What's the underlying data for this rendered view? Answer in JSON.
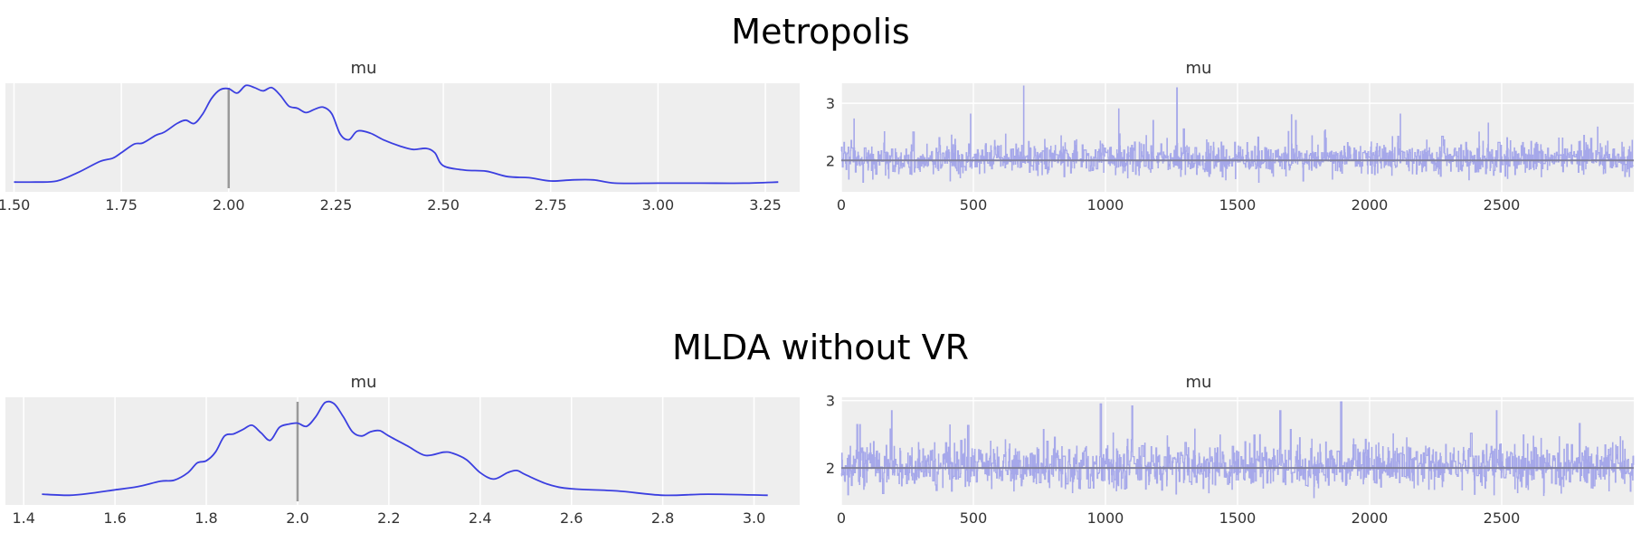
{
  "colors": {
    "background": "#ffffff",
    "panel": "#eeeeee",
    "grid": "#ffffff",
    "kde_line": "#3b3fe0",
    "trace_line": "#a6a8ea",
    "ref_line": "#999999",
    "trace_mean": "#7f7f99"
  },
  "chart_data": [
    {
      "group": "Metropolis",
      "suptitle": "Metropolis",
      "kde": {
        "type": "line",
        "title": "mu",
        "xlim": [
          1.48,
          3.33
        ],
        "ylim": [
          0,
          1
        ],
        "y_ticks_shown": false,
        "grid": true,
        "xticks": [
          1.5,
          1.75,
          2.0,
          2.25,
          2.5,
          2.75,
          3.0,
          3.25
        ],
        "xtick_labels": [
          "1.50",
          "1.75",
          "2.00",
          "2.25",
          "2.50",
          "2.75",
          "3.00",
          "3.25"
        ],
        "ref_line": 2.0,
        "x": [
          1.5,
          1.55,
          1.6,
          1.65,
          1.7,
          1.73,
          1.75,
          1.78,
          1.8,
          1.83,
          1.85,
          1.88,
          1.9,
          1.92,
          1.94,
          1.96,
          1.98,
          2.0,
          2.02,
          2.04,
          2.06,
          2.08,
          2.1,
          2.12,
          2.14,
          2.16,
          2.18,
          2.2,
          2.22,
          2.24,
          2.26,
          2.28,
          2.3,
          2.33,
          2.36,
          2.4,
          2.43,
          2.46,
          2.48,
          2.5,
          2.55,
          2.6,
          2.65,
          2.7,
          2.75,
          2.8,
          2.85,
          2.9,
          3.0,
          3.1,
          3.2,
          3.28
        ],
        "y": [
          0.09,
          0.09,
          0.1,
          0.18,
          0.28,
          0.31,
          0.36,
          0.44,
          0.45,
          0.52,
          0.55,
          0.63,
          0.66,
          0.63,
          0.72,
          0.86,
          0.94,
          0.95,
          0.91,
          0.98,
          0.96,
          0.93,
          0.96,
          0.89,
          0.79,
          0.77,
          0.73,
          0.76,
          0.78,
          0.72,
          0.53,
          0.48,
          0.56,
          0.54,
          0.48,
          0.42,
          0.39,
          0.4,
          0.36,
          0.24,
          0.2,
          0.19,
          0.14,
          0.13,
          0.1,
          0.11,
          0.11,
          0.08,
          0.08,
          0.08,
          0.08,
          0.09
        ]
      },
      "trace": {
        "type": "line",
        "title": "mu",
        "xlim": [
          0,
          3000
        ],
        "ylim": [
          1.45,
          3.35
        ],
        "grid": true,
        "xticks": [
          0,
          500,
          1000,
          1500,
          2000,
          2500
        ],
        "xtick_labels": [
          "0",
          "500",
          "1000",
          "1500",
          "2000",
          "2500"
        ],
        "yticks": [
          2,
          3
        ],
        "ytick_labels": [
          "2",
          "3"
        ],
        "ref_line": 2.0,
        "n_draws": 3000,
        "mean": 2.02,
        "sd": 0.22,
        "seed": 7,
        "spikes": [
          [
            690,
            3.3
          ],
          [
            1270,
            3.27
          ],
          [
            1050,
            2.9
          ],
          [
            1180,
            2.7
          ],
          [
            1720,
            2.7
          ]
        ]
      }
    },
    {
      "group": "MLDA without VR",
      "suptitle": "MLDA without VR",
      "kde": {
        "type": "line",
        "title": "mu",
        "xlim": [
          1.36,
          3.1
        ],
        "ylim": [
          0,
          1
        ],
        "y_ticks_shown": false,
        "grid": true,
        "xticks": [
          1.4,
          1.6,
          1.8,
          2.0,
          2.2,
          2.4,
          2.6,
          2.8,
          3.0
        ],
        "xtick_labels": [
          "1.4",
          "1.6",
          "1.8",
          "2.0",
          "2.2",
          "2.4",
          "2.6",
          "2.8",
          "3.0"
        ],
        "ref_line": 2.0,
        "x": [
          1.44,
          1.5,
          1.55,
          1.6,
          1.65,
          1.7,
          1.73,
          1.76,
          1.78,
          1.8,
          1.82,
          1.84,
          1.86,
          1.88,
          1.9,
          1.92,
          1.94,
          1.96,
          1.98,
          2.0,
          2.02,
          2.04,
          2.06,
          2.08,
          2.1,
          2.12,
          2.14,
          2.16,
          2.18,
          2.2,
          2.24,
          2.28,
          2.32,
          2.34,
          2.37,
          2.4,
          2.43,
          2.46,
          2.48,
          2.5,
          2.55,
          2.6,
          2.7,
          2.8,
          2.9,
          3.03
        ],
        "y": [
          0.1,
          0.09,
          0.11,
          0.14,
          0.17,
          0.22,
          0.23,
          0.3,
          0.39,
          0.41,
          0.49,
          0.64,
          0.66,
          0.7,
          0.74,
          0.67,
          0.6,
          0.72,
          0.75,
          0.76,
          0.73,
          0.82,
          0.95,
          0.94,
          0.82,
          0.68,
          0.64,
          0.68,
          0.69,
          0.64,
          0.55,
          0.46,
          0.49,
          0.48,
          0.42,
          0.3,
          0.24,
          0.3,
          0.32,
          0.28,
          0.19,
          0.15,
          0.13,
          0.09,
          0.1,
          0.09
        ]
      },
      "trace": {
        "type": "line",
        "title": "mu",
        "xlim": [
          0,
          3000
        ],
        "ylim": [
          1.45,
          3.05
        ],
        "grid": true,
        "xticks": [
          0,
          500,
          1000,
          1500,
          2000,
          2500
        ],
        "xtick_labels": [
          "0",
          "500",
          "1000",
          "1500",
          "2000",
          "2500"
        ],
        "yticks": [
          2,
          3
        ],
        "ytick_labels": [
          "2",
          "3"
        ],
        "ref_line": 2.0,
        "n_draws": 3000,
        "mean": 2.02,
        "sd": 0.24,
        "seed": 11,
        "spikes": [
          [
            980,
            2.95
          ],
          [
            1100,
            2.92
          ],
          [
            1890,
            2.98
          ],
          [
            1660,
            2.85
          ],
          [
            2480,
            2.85
          ],
          [
            190,
            2.85
          ]
        ]
      }
    }
  ]
}
